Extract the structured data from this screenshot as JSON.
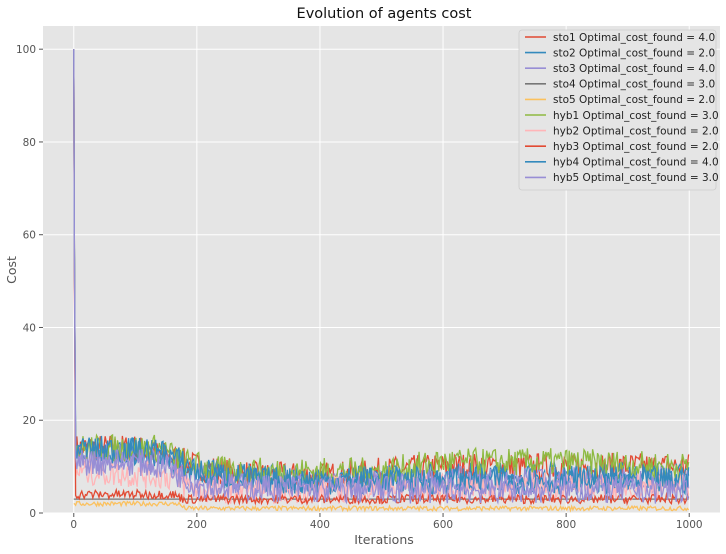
{
  "chart_data": {
    "type": "line",
    "title": "Evolution of agents cost",
    "xlabel": "Iterations",
    "ylabel": "Cost",
    "xlim": [
      -50,
      1050
    ],
    "ylim": [
      0,
      105
    ],
    "xticks": [
      0,
      200,
      400,
      600,
      800,
      1000
    ],
    "yticks": [
      0,
      20,
      40,
      60,
      80,
      100
    ],
    "grid": true,
    "legend_position": "top-right",
    "series": [
      {
        "name": "sto1 Optimal_cost_found = 4.0",
        "color": "#E24A33",
        "points": [
          [
            0,
            100
          ],
          [
            2,
            14
          ],
          [
            100,
            14
          ],
          [
            160,
            12
          ],
          [
            200,
            10
          ],
          [
            300,
            8
          ],
          [
            400,
            8
          ],
          [
            600,
            10
          ],
          [
            800,
            10
          ],
          [
            1000,
            10
          ]
        ],
        "spread": 3
      },
      {
        "name": "sto2 Optimal_cost_found = 2.0",
        "color": "#348ABD",
        "points": [
          [
            0,
            100
          ],
          [
            2,
            14
          ],
          [
            130,
            13
          ],
          [
            180,
            10
          ],
          [
            250,
            8
          ],
          [
            400,
            7
          ],
          [
            600,
            8
          ],
          [
            800,
            8
          ],
          [
            1000,
            8
          ]
        ],
        "spread": 3
      },
      {
        "name": "sto3 Optimal_cost_found = 4.0",
        "color": "#988ED5",
        "points": [
          [
            0,
            100
          ],
          [
            2,
            12
          ],
          [
            100,
            12
          ],
          [
            160,
            10
          ],
          [
            220,
            7
          ],
          [
            400,
            6
          ],
          [
            600,
            7
          ],
          [
            800,
            7
          ],
          [
            1000,
            7
          ]
        ],
        "spread": 3
      },
      {
        "name": "sto4 Optimal_cost_found = 3.0",
        "color": "#777777",
        "points": [
          [
            0,
            3
          ],
          [
            1000,
            3
          ]
        ],
        "spread": 0
      },
      {
        "name": "sto5 Optimal_cost_found = 2.0",
        "color": "#FBC15E",
        "points": [
          [
            0,
            2
          ],
          [
            170,
            2
          ],
          [
            180,
            1
          ],
          [
            1000,
            1
          ]
        ],
        "spread": 0.5
      },
      {
        "name": "hyb1 Optimal_cost_found = 3.0",
        "color": "#8EBA42",
        "points": [
          [
            0,
            100
          ],
          [
            2,
            14
          ],
          [
            140,
            14
          ],
          [
            180,
            11
          ],
          [
            250,
            9
          ],
          [
            500,
            9
          ],
          [
            600,
            11
          ],
          [
            800,
            11
          ],
          [
            1000,
            10
          ]
        ],
        "spread": 3
      },
      {
        "name": "hyb2 Optimal_cost_found = 2.0",
        "color": "#FFB5B8",
        "points": [
          [
            0,
            100
          ],
          [
            2,
            9
          ],
          [
            150,
            8
          ],
          [
            200,
            5
          ],
          [
            500,
            5
          ],
          [
            800,
            6
          ],
          [
            1000,
            6
          ]
        ],
        "spread": 3
      },
      {
        "name": "hyb3 Optimal_cost_found = 2.0",
        "color": "#E24A33",
        "points": [
          [
            0,
            100
          ],
          [
            2,
            4
          ],
          [
            160,
            4
          ],
          [
            180,
            3
          ],
          [
            1000,
            3
          ]
        ],
        "spread": 1
      },
      {
        "name": "hyb4 Optimal_cost_found = 4.0",
        "color": "#348ABD",
        "points": [
          [
            0,
            100
          ],
          [
            2,
            14
          ],
          [
            150,
            13
          ],
          [
            200,
            9
          ],
          [
            300,
            7
          ],
          [
            600,
            7
          ],
          [
            800,
            7
          ],
          [
            1000,
            7
          ]
        ],
        "spread": 3
      },
      {
        "name": "hyb5 Optimal_cost_found = 3.0",
        "color": "#988ED5",
        "points": [
          [
            0,
            100
          ],
          [
            2,
            11
          ],
          [
            100,
            11
          ],
          [
            150,
            10
          ],
          [
            200,
            6
          ],
          [
            400,
            5
          ],
          [
            600,
            5
          ],
          [
            800,
            5
          ],
          [
            1000,
            5
          ]
        ],
        "spread": 3
      }
    ]
  }
}
